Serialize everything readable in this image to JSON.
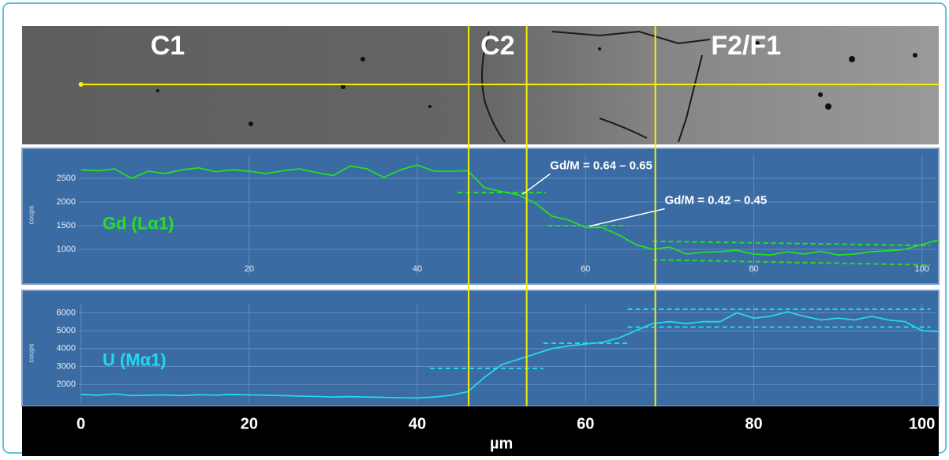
{
  "image": {
    "zones": [
      "C1",
      "C2",
      "F2/F1"
    ]
  },
  "boundaries": [
    46.1,
    53,
    68.3
  ],
  "chart_data": [
    {
      "type": "line",
      "y_label": "coups",
      "grid": true,
      "xlim": [
        -7,
        102
      ],
      "xticks": [
        20,
        40,
        60,
        80,
        100
      ],
      "ylim": [
        450,
        3000
      ],
      "yticks": [
        1000,
        1500,
        2000,
        2500
      ],
      "x": [
        0,
        2,
        4,
        6,
        8,
        10,
        12,
        14,
        16,
        18,
        20,
        22,
        24,
        26,
        28,
        30,
        32,
        34,
        36,
        38,
        40,
        42,
        44,
        46,
        48,
        50,
        52,
        54,
        56,
        58,
        60,
        62,
        64,
        66,
        68,
        70,
        72,
        74,
        76,
        78,
        80,
        82,
        84,
        86,
        88,
        90,
        92,
        94,
        96,
        98,
        100,
        102
      ],
      "series": [
        {
          "name": "Gd (Lα1)",
          "color": "#22e022",
          "values": [
            2680,
            2660,
            2700,
            2500,
            2650,
            2600,
            2680,
            2720,
            2640,
            2680,
            2650,
            2600,
            2660,
            2700,
            2620,
            2560,
            2760,
            2700,
            2520,
            2680,
            2780,
            2650,
            2650,
            2660,
            2300,
            2220,
            2150,
            1980,
            1700,
            1620,
            1460,
            1460,
            1300,
            1100,
            1000,
            1050,
            900,
            940,
            950,
            980,
            900,
            880,
            950,
            900,
            960,
            880,
            900,
            950,
            970,
            1000,
            1100,
            1200
          ]
        }
      ],
      "reference_lines": [
        {
          "x": [
            44.8,
            55.3
          ],
          "y": [
            2200,
            2200
          ]
        },
        {
          "x": [
            55.5,
            65
          ],
          "y": [
            1500,
            1500
          ]
        },
        {
          "x": [
            68,
            101
          ],
          "y": [
            1170,
            1080
          ]
        },
        {
          "x": [
            68,
            101
          ],
          "y": [
            780,
            670
          ]
        }
      ],
      "annotations": [
        {
          "text": "Gd/M = 0.64 – 0.65",
          "x": 52.5,
          "y": 2160
        },
        {
          "text": "Gd/M = 0.42 – 0.45",
          "x": 60.5,
          "y": 1490
        }
      ]
    },
    {
      "type": "line",
      "y_label": "coups",
      "grid": true,
      "x_label": "µm",
      "xlim": [
        -7,
        102
      ],
      "xticks": [
        0,
        20,
        40,
        60,
        80,
        100
      ],
      "ylim": [
        1000,
        6500
      ],
      "yticks": [
        2000,
        3000,
        4000,
        5000,
        6000
      ],
      "x": [
        0,
        2,
        4,
        6,
        8,
        10,
        12,
        14,
        16,
        18,
        20,
        22,
        24,
        26,
        28,
        30,
        32,
        34,
        36,
        38,
        40,
        42,
        44,
        46,
        48,
        50,
        52,
        54,
        56,
        58,
        60,
        62,
        64,
        66,
        68,
        70,
        72,
        74,
        76,
        78,
        80,
        82,
        84,
        86,
        88,
        90,
        92,
        94,
        96,
        98,
        100,
        102
      ],
      "series": [
        {
          "name": "U (Mα1)",
          "color": "#22d8f0",
          "values": [
            1450,
            1400,
            1480,
            1380,
            1400,
            1420,
            1380,
            1430,
            1400,
            1450,
            1420,
            1400,
            1380,
            1350,
            1330,
            1300,
            1320,
            1300,
            1280,
            1260,
            1250,
            1300,
            1400,
            1600,
            2400,
            3100,
            3400,
            3700,
            4000,
            4150,
            4250,
            4350,
            4600,
            5000,
            5400,
            5500,
            5400,
            5500,
            5500,
            6000,
            5700,
            5800,
            6050,
            5800,
            5600,
            5700,
            5600,
            5800,
            5600,
            5500,
            5000,
            4950
          ]
        }
      ],
      "reference_lines": [
        {
          "x": [
            41.5,
            55
          ],
          "y": [
            2900,
            2900
          ]
        },
        {
          "x": [
            55,
            65
          ],
          "y": [
            4300,
            4300
          ]
        },
        {
          "x": [
            65,
            101
          ],
          "y": [
            6200,
            6200
          ]
        },
        {
          "x": [
            65,
            101
          ],
          "y": [
            5200,
            5200
          ]
        }
      ]
    }
  ]
}
